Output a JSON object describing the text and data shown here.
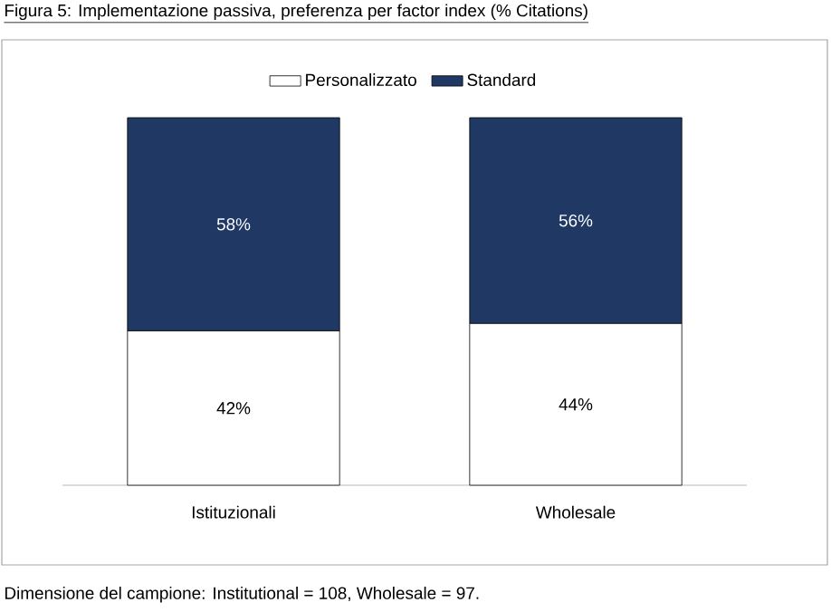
{
  "chart_data": {
    "type": "bar",
    "title": "Figura 5: Implementazione passiva, preferenza per factor index (% Citations)",
    "categories": [
      "Istituzionali",
      "Wholesale"
    ],
    "stacked": true,
    "series": [
      {
        "name": "Personalizzato",
        "color": "#ffffff",
        "values": [
          42,
          44
        ],
        "value_labels": [
          "42%",
          "44%"
        ]
      },
      {
        "name": "Standard",
        "color": "#1f3864",
        "values": [
          58,
          56
        ],
        "value_labels": [
          "58%",
          "56%"
        ]
      }
    ],
    "legend": "top",
    "tick_labels": "x",
    "annotations": [
      "Dimensione del campione: Institutional = 108, Wholesale = 97."
    ]
  }
}
